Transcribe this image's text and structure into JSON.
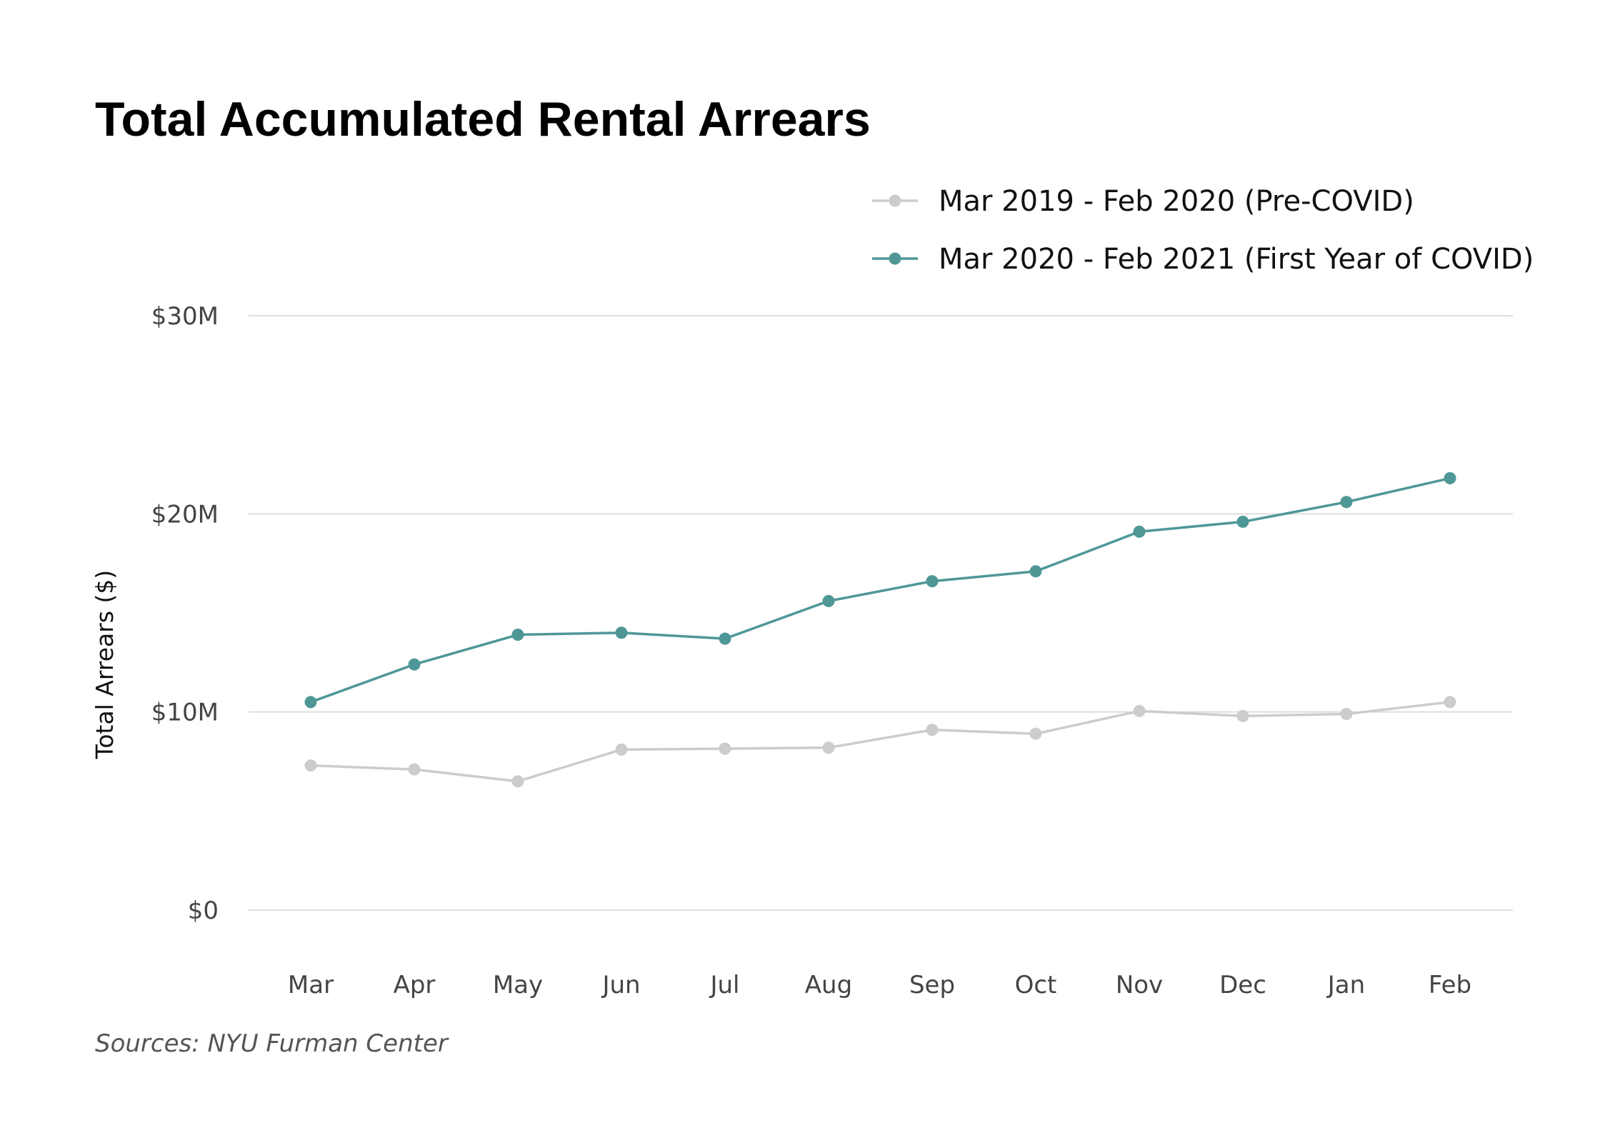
{
  "chart_data": {
    "type": "line",
    "title": "Total Accumulated Rental Arrears",
    "ylabel": "Total Arrears ($)",
    "xlabel": "",
    "categories": [
      "Mar",
      "Apr",
      "May",
      "Jun",
      "Jul",
      "Aug",
      "Sep",
      "Oct",
      "Nov",
      "Dec",
      "Jan",
      "Feb"
    ],
    "ylim": [
      0,
      30000000
    ],
    "yticks": [
      {
        "value": 0,
        "label": "$0"
      },
      {
        "value": 10000000,
        "label": "$10M"
      },
      {
        "value": 20000000,
        "label": "$20M"
      },
      {
        "value": 30000000,
        "label": "$30M"
      }
    ],
    "grid": true,
    "legend_position": "top-right",
    "series": [
      {
        "name": "Mar 2019 - Feb 2020 (Pre-COVID)",
        "color": "#cccccc",
        "values": [
          7300000,
          7100000,
          6500000,
          8100000,
          8150000,
          8200000,
          9100000,
          8900000,
          10050000,
          9800000,
          9900000,
          10500000
        ]
      },
      {
        "name": "Mar 2020 - Feb 2021 (First Year of COVID)",
        "color": "#4f9797",
        "values": [
          10500000,
          12400000,
          13900000,
          14000000,
          13700000,
          15600000,
          16600000,
          17100000,
          19100000,
          19600000,
          20600000,
          21800000
        ]
      }
    ],
    "source": "Sources: NYU Furman Center"
  }
}
